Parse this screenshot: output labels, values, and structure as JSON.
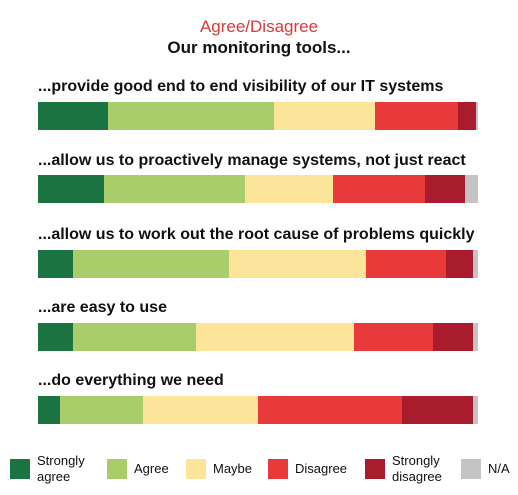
{
  "chart_data": {
    "type": "bar",
    "orientation": "horizontal",
    "stacked": true,
    "title": "Agree/Disagree",
    "subtitle": "Our monitoring tools...",
    "categories": [
      "...provide good end to end visibility of our IT systems",
      "...allow us to proactively manage systems, not just react",
      "...allow us to work out the root cause of problems quickly",
      "...are easy to use",
      "...do everything we need"
    ],
    "series": [
      {
        "name": "Strongly agree",
        "color": "#1a7340",
        "values": [
          16,
          15,
          8,
          8,
          5
        ]
      },
      {
        "name": "Agree",
        "color": "#a8cd6a",
        "values": [
          38,
          32,
          35,
          28,
          19
        ]
      },
      {
        "name": "Maybe",
        "color": "#fde49b",
        "values": [
          23,
          20,
          31,
          36,
          26
        ]
      },
      {
        "name": "Disagree",
        "color": "#e83a3a",
        "values": [
          19,
          21,
          18,
          18,
          33
        ]
      },
      {
        "name": "Strongly disagree",
        "color": "#a81c2e",
        "values": [
          4,
          9,
          6,
          9,
          16
        ]
      },
      {
        "name": "N/A",
        "color": "#c4c4c4",
        "values": [
          0.5,
          3,
          1.2,
          1.2,
          1.2
        ]
      }
    ],
    "legend_position": "bottom",
    "grid": false
  }
}
